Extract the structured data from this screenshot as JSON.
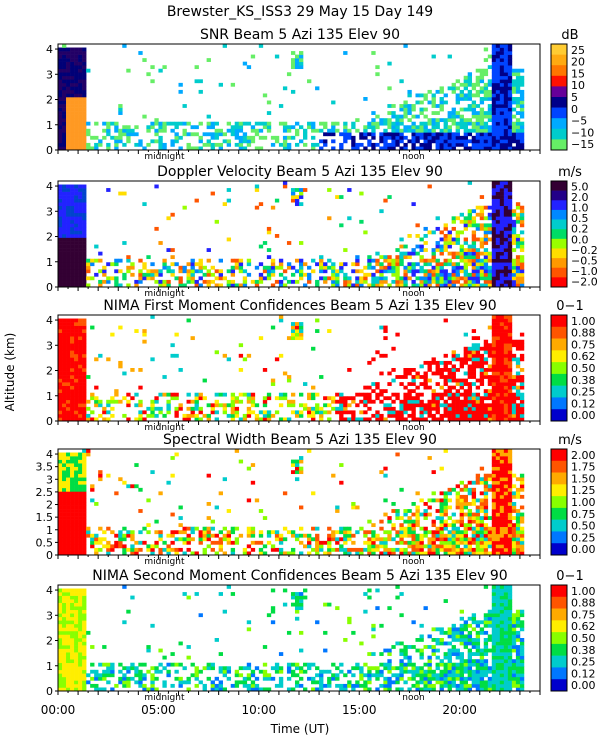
{
  "header": {
    "title": "Brewster_KS_ISS3  29 May 15 Day 149"
  },
  "x_axis": {
    "label": "Time (UT)",
    "ticks": [
      "00:00",
      "05:00",
      "10:00",
      "15:00",
      "20:00"
    ],
    "markers": [
      "midnight",
      "noon"
    ]
  },
  "y_axis": {
    "label": "Altitude (km)"
  },
  "chart_data": [
    {
      "type": "heatmap",
      "title": "SNR Beam 5 Azi 135 Elev 90",
      "unit": "dB",
      "ylim": [
        0,
        4.2
      ],
      "y_ticks": [
        0,
        1,
        2,
        3,
        4
      ],
      "colorbar_ticks": [
        "25",
        "20",
        "15",
        "10",
        "5",
        "0",
        "−5",
        "−10",
        "−15"
      ],
      "colors": [
        "#ffcc33",
        "#ffaa11",
        "#ff7700",
        "#ff1100",
        "#660099",
        "#000088",
        "#0044ff",
        "#00aaff",
        "#00cccc",
        "#66ee66"
      ]
    },
    {
      "type": "heatmap",
      "title": "Doppler Velocity Beam 5 Azi 135 Elev 90",
      "unit": "m/s",
      "ylim": [
        0,
        4.2
      ],
      "y_ticks": [
        0,
        1,
        2,
        3,
        4
      ],
      "colorbar_ticks": [
        "5.0",
        "2.0",
        "1.0",
        "0.5",
        "0.2",
        "0.0",
        "−0.2",
        "−0.5",
        "−1.0",
        "−2.0"
      ],
      "colors": [
        "#330033",
        "#220088",
        "#2222ff",
        "#0088ff",
        "#00cccc",
        "#00dd66",
        "#99ff00",
        "#ffdd00",
        "#ff9900",
        "#ff5500",
        "#ff0000"
      ]
    },
    {
      "type": "heatmap",
      "title": "NIMA First Moment Confidences Beam 5 Azi 135 Elev 90",
      "unit": "0−1",
      "ylim": [
        0,
        4.2
      ],
      "y_ticks": [
        0,
        1,
        2,
        3,
        4
      ],
      "colorbar_ticks": [
        "1.00",
        "0.88",
        "0.75",
        "0.62",
        "0.50",
        "0.38",
        "0.25",
        "0.12",
        "0.00"
      ],
      "colors": [
        "#ff0000",
        "#ff5500",
        "#ffaa00",
        "#ffee00",
        "#88ff00",
        "#00dd44",
        "#00cccc",
        "#0077ff",
        "#0000cc"
      ]
    },
    {
      "type": "heatmap",
      "title": "Spectral Width Beam 5 Azi 135 Elev 90",
      "unit": "m/s",
      "ylim": [
        0,
        4.2
      ],
      "y_ticks": [
        0,
        0.5,
        1,
        1.5,
        2,
        2.5,
        3,
        3.5,
        4
      ],
      "colorbar_ticks": [
        "2.00",
        "1.75",
        "1.50",
        "1.25",
        "1.00",
        "0.75",
        "0.50",
        "0.25",
        "0.00"
      ],
      "colors": [
        "#ff0000",
        "#ff5500",
        "#ffaa00",
        "#ffee00",
        "#88ff00",
        "#00dd44",
        "#00cccc",
        "#0077ff",
        "#0000cc"
      ]
    },
    {
      "type": "heatmap",
      "title": "NIMA Second Moment Confidences Beam 5 Azi 135 Elev 90",
      "unit": "0−1",
      "ylim": [
        0,
        4.2
      ],
      "y_ticks": [
        0,
        1,
        2,
        3,
        4
      ],
      "colorbar_ticks": [
        "1.00",
        "0.88",
        "0.75",
        "0.62",
        "0.50",
        "0.38",
        "0.25",
        "0.12",
        "0.00"
      ],
      "colors": [
        "#ff0000",
        "#ff5500",
        "#ffaa00",
        "#ffee00",
        "#88ff00",
        "#00dd44",
        "#00cccc",
        "#0077ff",
        "#0000cc"
      ]
    }
  ]
}
